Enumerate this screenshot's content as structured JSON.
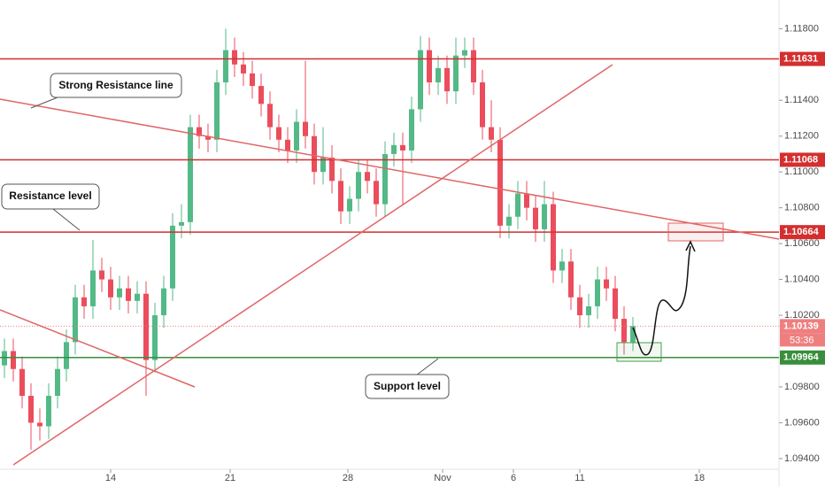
{
  "chart_data": {
    "type": "candlestick",
    "up_color": "#53b987",
    "down_color": "#eb4d5c",
    "xlim": [
      -0.5,
      87.5
    ],
    "xticks": [
      {
        "value": 12,
        "label": "14"
      },
      {
        "value": 25.5,
        "label": "21"
      },
      {
        "value": 38.8,
        "label": "28"
      },
      {
        "value": 49.5,
        "label": "Nov"
      },
      {
        "value": 57.5,
        "label": "6"
      },
      {
        "value": 65,
        "label": "11"
      },
      {
        "value": 78.5,
        "label": "18"
      }
    ],
    "ylim": [
      1.0934,
      1.1196
    ],
    "yticks": [
      {
        "value": 1.118,
        "label": "1.11800"
      },
      {
        "value": 1.114,
        "label": "1.11400"
      },
      {
        "value": 1.112,
        "label": "1.11200"
      },
      {
        "value": 1.11,
        "label": "1.11000"
      },
      {
        "value": 1.108,
        "label": "1.10800"
      },
      {
        "value": 1.106,
        "label": "1.10600"
      },
      {
        "value": 1.104,
        "label": "1.10400"
      },
      {
        "value": 1.102,
        "label": "1.10200"
      },
      {
        "value": 1.098,
        "label": "1.09800"
      },
      {
        "value": 1.096,
        "label": "1.09600"
      },
      {
        "value": 1.094,
        "label": "1.09400"
      }
    ],
    "grid": false,
    "ohlc": [
      [
        1.0992,
        1.1007,
        1.0985,
        1.1
      ],
      [
        1.1,
        1.1007,
        1.0983,
        1.099
      ],
      [
        1.099,
        1.0997,
        1.0968,
        1.0975
      ],
      [
        1.0975,
        1.0982,
        1.0945,
        1.096
      ],
      [
        1.096,
        1.0968,
        1.095,
        1.0958
      ],
      [
        1.0958,
        1.0982,
        1.0951,
        1.0975
      ],
      [
        1.0975,
        1.0997,
        1.0968,
        1.099
      ],
      [
        1.099,
        1.1012,
        1.0983,
        1.1005
      ],
      [
        1.1005,
        1.1037,
        1.0998,
        1.103
      ],
      [
        1.103,
        1.1037,
        1.1018,
        1.1025
      ],
      [
        1.1025,
        1.1062,
        1.1018,
        1.1045
      ],
      [
        1.1045,
        1.1052,
        1.1033,
        1.104
      ],
      [
        1.104,
        1.1047,
        1.1023,
        1.103
      ],
      [
        1.103,
        1.1042,
        1.1023,
        1.1035
      ],
      [
        1.1035,
        1.1042,
        1.1021,
        1.1028
      ],
      [
        1.1028,
        1.1039,
        1.1021,
        1.1032
      ],
      [
        1.1032,
        1.1039,
        1.0975,
        1.0995
      ],
      [
        1.0995,
        1.1027,
        1.0988,
        1.102
      ],
      [
        1.102,
        1.1042,
        1.1013,
        1.1035
      ],
      [
        1.1035,
        1.1077,
        1.1028,
        1.107
      ],
      [
        1.107,
        1.1082,
        1.1063,
        1.1072
      ],
      [
        1.1072,
        1.1132,
        1.1065,
        1.1125
      ],
      [
        1.1125,
        1.1132,
        1.1113,
        1.112
      ],
      [
        1.112,
        1.1127,
        1.1111,
        1.1118
      ],
      [
        1.1118,
        1.1157,
        1.1111,
        1.115
      ],
      [
        1.115,
        1.118,
        1.1143,
        1.1168
      ],
      [
        1.1168,
        1.1175,
        1.1153,
        1.116
      ],
      [
        1.116,
        1.1167,
        1.1148,
        1.1155
      ],
      [
        1.1155,
        1.1162,
        1.1141,
        1.1148
      ],
      [
        1.1148,
        1.1155,
        1.1131,
        1.1138
      ],
      [
        1.1138,
        1.1145,
        1.1118,
        1.1125
      ],
      [
        1.1125,
        1.1132,
        1.1111,
        1.1118
      ],
      [
        1.1118,
        1.1125,
        1.1105,
        1.1112
      ],
      [
        1.1112,
        1.1135,
        1.1105,
        1.1128
      ],
      [
        1.1128,
        1.1162,
        1.1113,
        1.112
      ],
      [
        1.112,
        1.1127,
        1.1093,
        1.11
      ],
      [
        1.11,
        1.1125,
        1.1093,
        1.1108
      ],
      [
        1.1108,
        1.1115,
        1.1088,
        1.1095
      ],
      [
        1.1095,
        1.1102,
        1.1071,
        1.1078
      ],
      [
        1.1078,
        1.1092,
        1.1071,
        1.1085
      ],
      [
        1.1085,
        1.1107,
        1.1078,
        1.11
      ],
      [
        1.11,
        1.1107,
        1.1088,
        1.1095
      ],
      [
        1.1095,
        1.1102,
        1.1075,
        1.1082
      ],
      [
        1.1082,
        1.1117,
        1.1075,
        1.111
      ],
      [
        1.111,
        1.1122,
        1.1103,
        1.1115
      ],
      [
        1.1115,
        1.1122,
        1.1082,
        1.1112
      ],
      [
        1.1112,
        1.1142,
        1.1105,
        1.1135
      ],
      [
        1.1135,
        1.1176,
        1.1128,
        1.1168
      ],
      [
        1.1168,
        1.1175,
        1.1143,
        1.115
      ],
      [
        1.115,
        1.1165,
        1.1143,
        1.1158
      ],
      [
        1.1158,
        1.1165,
        1.1138,
        1.1145
      ],
      [
        1.1145,
        1.1175,
        1.1138,
        1.1165
      ],
      [
        1.1165,
        1.1175,
        1.1158,
        1.1168
      ],
      [
        1.1168,
        1.1175,
        1.1143,
        1.115
      ],
      [
        1.115,
        1.1157,
        1.1118,
        1.1125
      ],
      [
        1.1125,
        1.114,
        1.1111,
        1.1118
      ],
      [
        1.1118,
        1.1125,
        1.1063,
        1.107
      ],
      [
        1.107,
        1.1082,
        1.1063,
        1.1075
      ],
      [
        1.1075,
        1.1095,
        1.1068,
        1.1088
      ],
      [
        1.1088,
        1.1095,
        1.1073,
        1.108
      ],
      [
        1.108,
        1.1087,
        1.1061,
        1.1068
      ],
      [
        1.1068,
        1.1095,
        1.1061,
        1.1082
      ],
      [
        1.1082,
        1.1089,
        1.1038,
        1.1045
      ],
      [
        1.1045,
        1.1057,
        1.1038,
        1.105
      ],
      [
        1.105,
        1.1057,
        1.1023,
        1.103
      ],
      [
        1.103,
        1.1037,
        1.1013,
        1.102
      ],
      [
        1.102,
        1.1032,
        1.1013,
        1.1025
      ],
      [
        1.1025,
        1.1047,
        1.1018,
        1.104
      ],
      [
        1.104,
        1.1047,
        1.1028,
        1.1035
      ],
      [
        1.1035,
        1.1042,
        1.1011,
        1.1018
      ],
      [
        1.1018,
        1.1025,
        1.0998,
        1.1005
      ],
      [
        1.1005,
        1.1019,
        1.1,
        1.1014
      ]
    ],
    "levels": [
      {
        "value": 1.11631,
        "color": "#d32f2f"
      },
      {
        "value": 1.11068,
        "color": "#d32f2f"
      },
      {
        "value": 1.10664,
        "color": "#d32f2f"
      },
      {
        "value": 1.09964,
        "color": "#388e3c"
      }
    ],
    "last_price": {
      "value": 1.10139,
      "color": "#ef7f7f",
      "countdown": "53:36"
    },
    "annotations": [
      "Strong Resistance line",
      "Resistance level",
      "Support level"
    ]
  }
}
